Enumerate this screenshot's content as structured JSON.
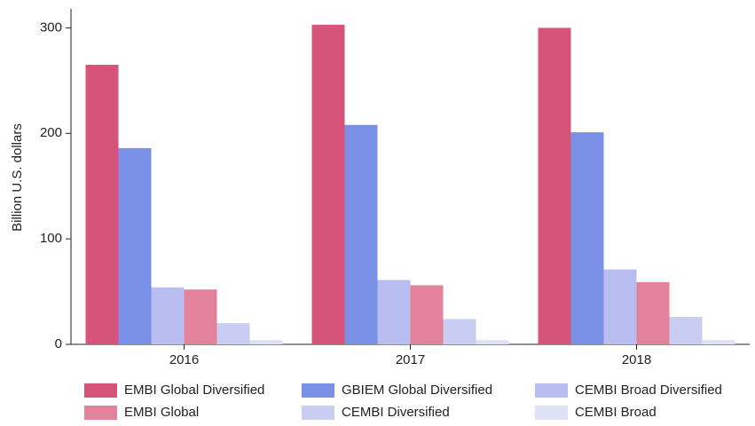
{
  "chart_data": {
    "type": "bar",
    "y_label": "Billion U.S. dollars",
    "categories": [
      "2016",
      "2017",
      "2018"
    ],
    "series": [
      {
        "name": "EMBI Global Diversified",
        "color": "#d6537a",
        "values": [
          265,
          303,
          300
        ]
      },
      {
        "name": "GBIEM Global Diversified",
        "color": "#7a8fe6",
        "values": [
          186,
          208,
          201
        ]
      },
      {
        "name": "CEMBI Broad Diversified",
        "color": "#b8bff0",
        "values": [
          54,
          61,
          71
        ]
      },
      {
        "name": "EMBI Global",
        "color": "#e3839b",
        "values": [
          52,
          56,
          59
        ]
      },
      {
        "name": "CEMBI Diversified",
        "color": "#c9cdf1",
        "values": [
          20,
          24,
          26
        ]
      },
      {
        "name": "CEMBI Broad",
        "color": "#dfe1f5",
        "values": [
          4,
          4,
          4
        ]
      }
    ],
    "ylim": [
      0,
      318
    ],
    "yticks": [
      0,
      100,
      200,
      300
    ],
    "legend": "bottom"
  }
}
